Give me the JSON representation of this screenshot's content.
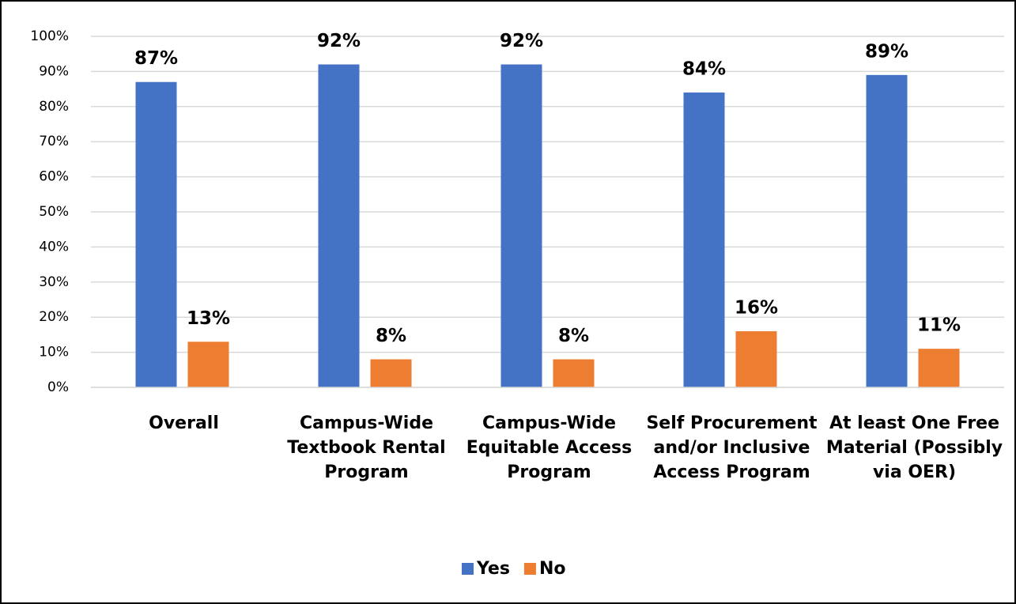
{
  "chart_data": {
    "type": "bar",
    "categories": [
      "Overall",
      "Campus-Wide Textbook Rental Program",
      "Campus-Wide Equitable Access Program",
      "Self Procurement and/or Inclusive Access Program",
      "At least One Free Material (Possibly via OER)"
    ],
    "series": [
      {
        "name": "Yes",
        "color": "#4472c4",
        "values": [
          87,
          92,
          92,
          84,
          89
        ],
        "value_labels": [
          "87%",
          "92%",
          "92%",
          "84%",
          "89%"
        ]
      },
      {
        "name": "No",
        "color": "#ed7d31",
        "values": [
          13,
          8,
          8,
          16,
          11
        ],
        "value_labels": [
          "13%",
          "8%",
          "8%",
          "16%",
          "11%"
        ]
      }
    ],
    "ylim": [
      0,
      100
    ],
    "yticks": [
      {
        "value": 0,
        "label": "0%"
      },
      {
        "value": 10,
        "label": "10%"
      },
      {
        "value": 20,
        "label": "20%"
      },
      {
        "value": 30,
        "label": "30%"
      },
      {
        "value": 40,
        "label": "40%"
      },
      {
        "value": 50,
        "label": "50%"
      },
      {
        "value": 60,
        "label": "60%"
      },
      {
        "value": 70,
        "label": "70%"
      },
      {
        "value": 80,
        "label": "80%"
      },
      {
        "value": 90,
        "label": "90%"
      },
      {
        "value": 100,
        "label": "100%"
      }
    ],
    "grid": true,
    "legend": "bottom"
  }
}
